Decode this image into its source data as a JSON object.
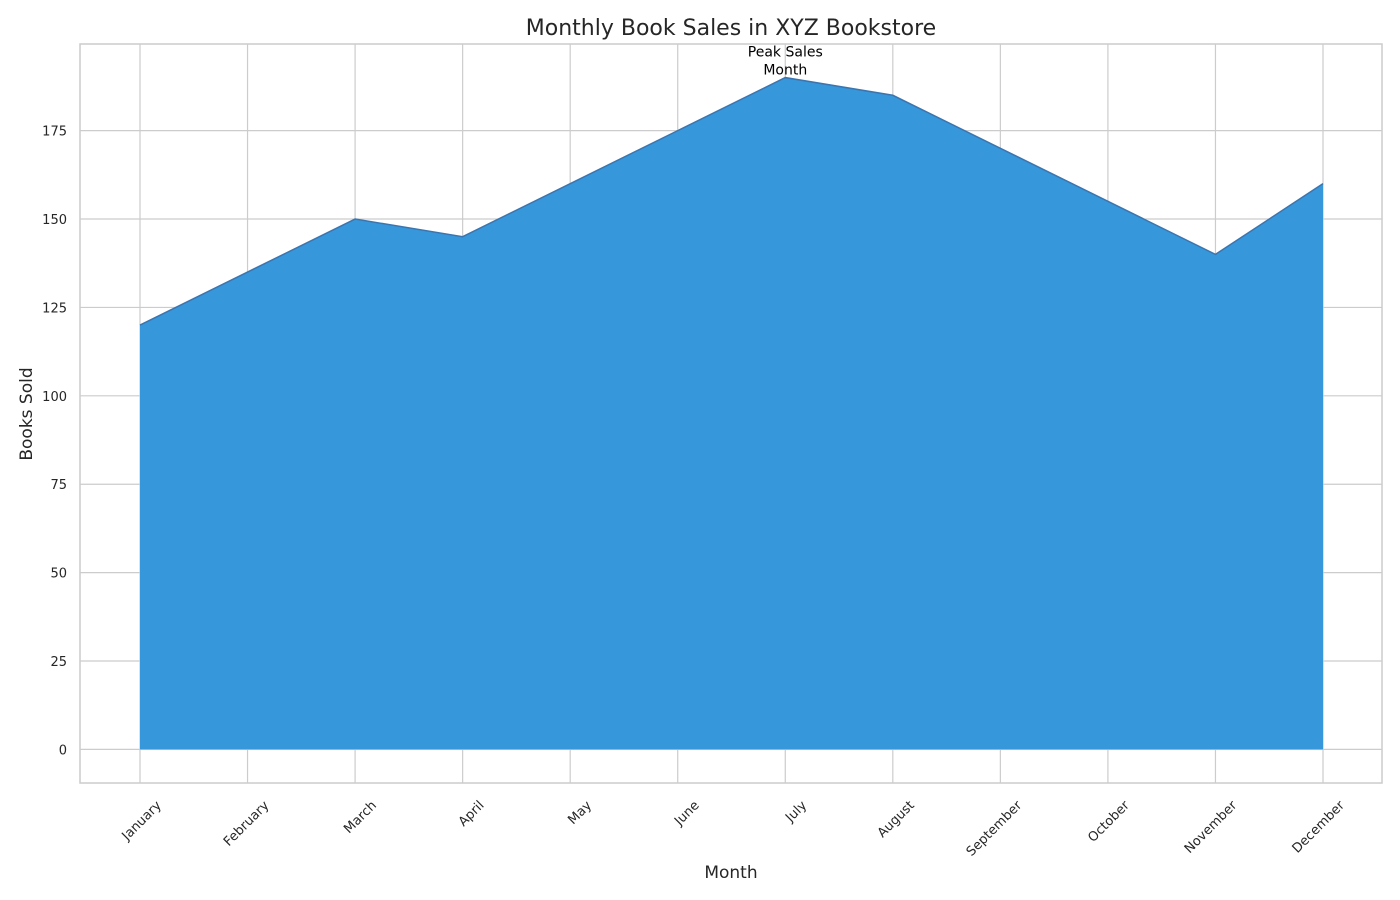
{
  "chart_data": {
    "type": "area",
    "title": "Monthly Book Sales in XYZ Bookstore",
    "xlabel": "Month",
    "ylabel": "Books Sold",
    "categories": [
      "January",
      "February",
      "March",
      "April",
      "May",
      "June",
      "July",
      "August",
      "September",
      "October",
      "November",
      "December"
    ],
    "values": [
      120,
      135,
      150,
      145,
      160,
      175,
      190,
      185,
      170,
      155,
      140,
      160
    ],
    "ylim": [
      -9.5,
      199.5
    ],
    "yticks": [
      0,
      25,
      50,
      75,
      100,
      125,
      150,
      175
    ],
    "grid": true,
    "legend": "none",
    "fill_color": "#3797db",
    "line_color": "#3b75af",
    "annotation": {
      "text_line1": "Peak Sales",
      "text_line2": "Month",
      "category": "July",
      "value": 190
    }
  }
}
